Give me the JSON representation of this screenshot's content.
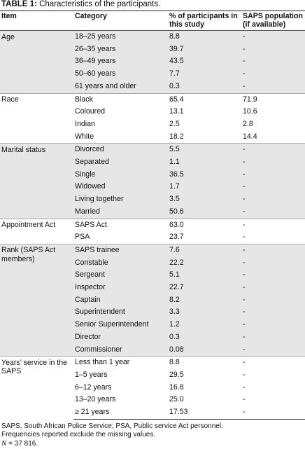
{
  "title": {
    "label": "TABLE 1:",
    "text": "Characteristics of the participants."
  },
  "table": {
    "header": [
      "Item",
      "Category",
      "% of participants in this study",
      "SAPS population (if available)"
    ],
    "groups": [
      {
        "item": "Age",
        "rows": [
          [
            "18–25 years",
            "8.8",
            "-"
          ],
          [
            "26–35 years",
            "39.7",
            "-"
          ],
          [
            "36–49 years",
            "43.5",
            "-"
          ],
          [
            "50–60 years",
            "7.7",
            "-"
          ],
          [
            "61 years and older",
            "0.3",
            "-"
          ]
        ]
      },
      {
        "item": "Race",
        "rows": [
          [
            "Black",
            "65.4",
            "71.9"
          ],
          [
            "Coloured",
            "13.1",
            "10.6"
          ],
          [
            "Indian",
            "2.5",
            "2.8"
          ],
          [
            "White",
            "18.2",
            "14.4"
          ]
        ]
      },
      {
        "item": "Marital status",
        "rows": [
          [
            "Divorced",
            "5.5",
            "-"
          ],
          [
            "Separated",
            "1.1",
            "-"
          ],
          [
            "Single",
            "36.5",
            "-"
          ],
          [
            "Widowed",
            "1.7",
            "-"
          ],
          [
            "Living together",
            "3.5",
            "-"
          ],
          [
            "Married",
            "50.6",
            "-"
          ]
        ]
      },
      {
        "item": "Appointment Act",
        "rows": [
          [
            "SAPS Act",
            "63.0",
            "-"
          ],
          [
            "PSA",
            "23.7",
            "-"
          ]
        ]
      },
      {
        "item": "Rank (SAPS Act members)",
        "rows": [
          [
            "SAPS trainee",
            "7.6",
            "-"
          ],
          [
            "Constable",
            "22.2",
            "-"
          ],
          [
            "Sergeant",
            "5.1",
            "-"
          ],
          [
            "Inspector",
            "22.7",
            "-"
          ],
          [
            "Captain",
            "8.2",
            "-"
          ],
          [
            "Superintendent",
            "3.3",
            "-"
          ],
          [
            "Senior Superintendent",
            "1.2",
            "-"
          ],
          [
            "Director",
            "0.3",
            "-"
          ],
          [
            "Commissioner",
            "0.08",
            "-"
          ]
        ]
      },
      {
        "item": "Years’ service in the SAPS",
        "rows": [
          [
            "Less than 1 year",
            "8.8",
            "-"
          ],
          [
            "1–5 years",
            "29.5",
            "-"
          ],
          [
            "6–12 years",
            "16.8",
            "-"
          ],
          [
            "13–20 years",
            "25.0",
            "-"
          ],
          [
            "≥ 21 years",
            "17.53",
            "-"
          ]
        ]
      }
    ]
  },
  "footnotes": {
    "abbreviations": "SAPS, South African Police Service; PSA, Public service Act personnel.",
    "missing": "Frequencies reported exclude the missing values.",
    "n_symbol": "N",
    "n_text": "= 37 816."
  }
}
